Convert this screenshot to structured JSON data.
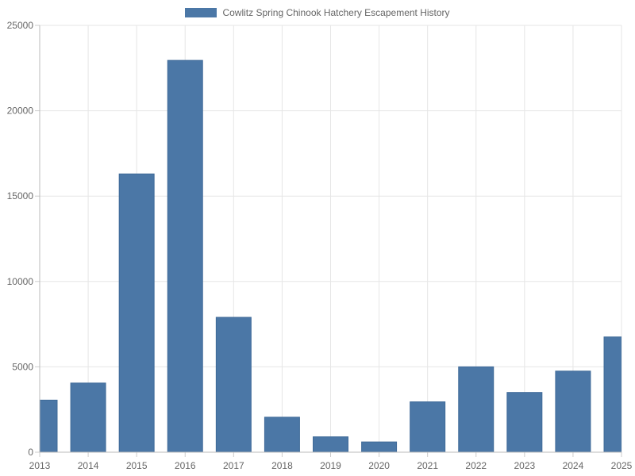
{
  "chart_data": {
    "type": "bar",
    "legend": {
      "label": "Cowlitz Spring Chinook Hatchery Escapement History",
      "position": "top-center",
      "color": "#4b77a6"
    },
    "categories": [
      "2013",
      "2014",
      "2015",
      "2016",
      "2017",
      "2018",
      "2019",
      "2020",
      "2021",
      "2022",
      "2023",
      "2024",
      "2025"
    ],
    "series": [
      {
        "name": "Cowlitz Spring Chinook Hatchery Escapement History",
        "values": [
          3050,
          4050,
          16300,
          22950,
          7900,
          2050,
          900,
          600,
          2950,
          5000,
          3500,
          4750,
          6750
        ],
        "color": "#4b77a6"
      }
    ],
    "y_ticks": [
      "0",
      "5000",
      "10000",
      "15000",
      "20000",
      "25000"
    ],
    "ylim": [
      0,
      25000
    ],
    "grid": true,
    "title": "",
    "xlabel": "",
    "ylabel": ""
  }
}
